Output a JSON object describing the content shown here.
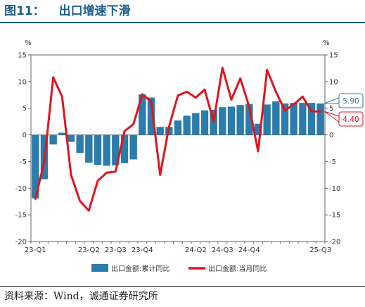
{
  "title": {
    "number": "图11：",
    "text": "出口增速下滑"
  },
  "source": "资料来源：Wind，诚通证券研究所",
  "colors": {
    "bar": "#2b7bab",
    "line": "#e0141e",
    "title": "#1f5f8b",
    "axis": "#666666"
  },
  "chart_data": {
    "type": "bar",
    "ylabel_left": "%",
    "ylabel_right": "%",
    "ylim": [
      -20,
      15
    ],
    "yticks": [
      15,
      10,
      5,
      0,
      -5,
      -10,
      -15,
      -20
    ],
    "x_tick_labels": [
      {
        "index": 0,
        "label": "23-Q1"
      },
      {
        "index": 6,
        "label": "23-Q2"
      },
      {
        "index": 9,
        "label": "23-Q3"
      },
      {
        "index": 12,
        "label": "23-Q4"
      },
      {
        "index": 18,
        "label": "24-Q2"
      },
      {
        "index": 21,
        "label": "24-Q3"
      },
      {
        "index": 24,
        "label": "24-Q4"
      },
      {
        "index": 32,
        "label": "25-Q3"
      }
    ],
    "num_points": 33,
    "series": [
      {
        "name": "出口金额:累计同比",
        "kind": "bar",
        "axis": "left",
        "values": [
          -11.9,
          -8.3,
          -1.8,
          0.4,
          -1.3,
          -3.4,
          -5.2,
          -5.6,
          -5.8,
          -5.7,
          -5.3,
          -4.6,
          7.6,
          7.0,
          1.5,
          1.5,
          2.7,
          3.6,
          4.1,
          4.6,
          4.7,
          5.2,
          5.3,
          5.6,
          5.8,
          2.1,
          5.7,
          6.3,
          5.9,
          6.0,
          6.0,
          6.0,
          5.9
        ]
      },
      {
        "name": "出口金额:当月同比",
        "kind": "line",
        "axis": "right",
        "values": [
          -12.0,
          -5.0,
          10.8,
          7.2,
          -7.5,
          -12.4,
          -14.2,
          -8.6,
          -7.1,
          -6.9,
          0.7,
          2.0,
          7.6,
          6.3,
          -7.5,
          1.5,
          7.4,
          8.1,
          7.0,
          8.5,
          2.5,
          12.6,
          6.6,
          10.6,
          5.3,
          -3.1,
          12.2,
          8.1,
          4.6,
          5.7,
          7.2,
          4.4,
          4.4
        ]
      }
    ],
    "annotations": [
      {
        "series": "出口金额:累计同比",
        "value": "5.90"
      },
      {
        "series": "出口金额:当月同比",
        "value": "4.40"
      }
    ],
    "legend_position": "bottom"
  }
}
